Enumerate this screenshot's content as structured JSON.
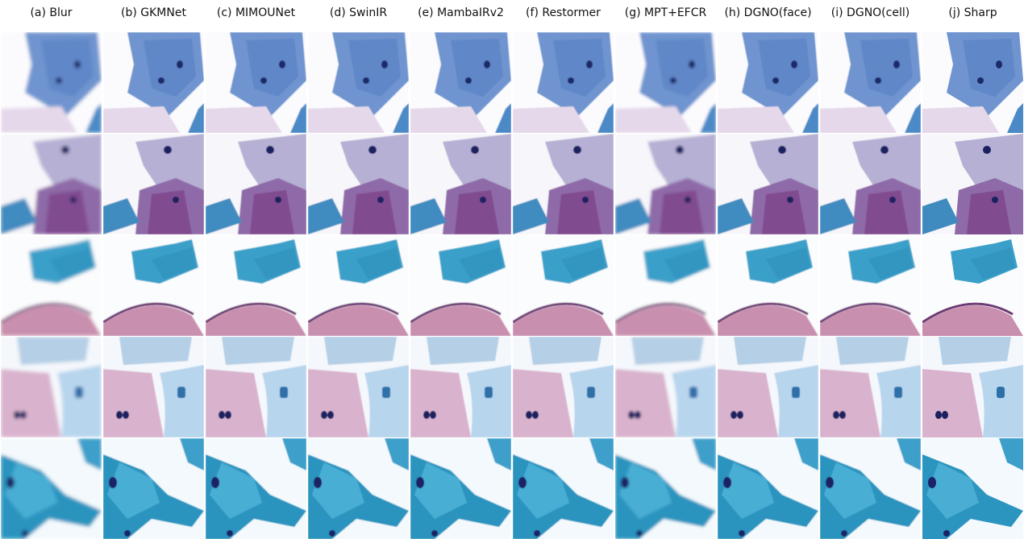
{
  "columns": [
    "(a) Blur",
    "(b) GKMNet",
    "(c) MIMOUNet",
    "(d) SwinIR",
    "(e) MambaIRv2",
    "(f) Restormer",
    "(g) MPT+EFCR",
    "(h) DGNO(face)",
    "(i) DGNO(cell)",
    "(j) Sharp"
  ]
}
